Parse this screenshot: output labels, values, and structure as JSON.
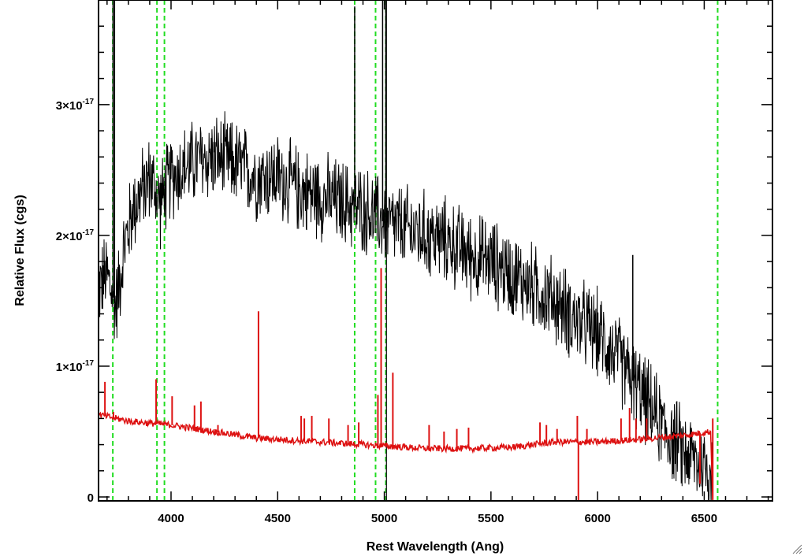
{
  "chart_data": {
    "type": "line",
    "xlabel": "Rest Wavelength (Ang)",
    "ylabel": "Relative Flux (cgs)",
    "xlim": [
      3660,
      6820
    ],
    "ylim": [
      -3e-19,
      3.8e-17
    ],
    "xticks": [
      4000,
      4500,
      5000,
      5500,
      6000,
      6500
    ],
    "xtick_labels": [
      "4000",
      "4500",
      "5000",
      "5500",
      "6000",
      "6500"
    ],
    "yticks": [
      {
        "value": 0,
        "label": "0",
        "exp": ""
      },
      {
        "value": 1e-17,
        "label": "1×10",
        "exp": "-17"
      },
      {
        "value": 2e-17,
        "label": "2×10",
        "exp": "-17"
      },
      {
        "value": 3e-17,
        "label": "3×10",
        "exp": "-17"
      }
    ],
    "grid": false,
    "series": [
      {
        "color": "#000000",
        "style": "solid",
        "noise_amplitude": 2.8e-18,
        "x": [
          3660,
          3700,
          3740,
          3780,
          3820,
          3900,
          3950,
          4000,
          4100,
          4200,
          4300,
          4400,
          4500,
          4600,
          4700,
          4800,
          4900,
          5000,
          5100,
          5200,
          5300,
          5400,
          5500,
          5600,
          5700,
          5800,
          5900,
          6000,
          6100,
          6200,
          6300,
          6400,
          6500,
          6540
        ],
        "y": [
          1.6e-17,
          1.7e-17,
          1.45e-17,
          1.9e-17,
          2.2e-17,
          2.45e-17,
          2.25e-17,
          2.45e-17,
          2.55e-17,
          2.6e-17,
          2.55e-17,
          2.45e-17,
          2.45e-17,
          2.35e-17,
          2.3e-17,
          2.25e-17,
          2.2e-17,
          2.1e-17,
          2.05e-17,
          2e-17,
          1.95e-17,
          1.85e-17,
          1.8e-17,
          1.7e-17,
          1.6e-17,
          1.5e-17,
          1.35e-17,
          1.25e-17,
          1.05e-17,
          8e-18,
          5.5e-18,
          3.5e-18,
          2.5e-18,
          2e-18
        ]
      },
      {
        "color": "#dd1111",
        "style": "solid",
        "noise_amplitude": 2.5e-19,
        "x": [
          3660,
          3800,
          4000,
          4200,
          4400,
          4600,
          4800,
          5000,
          5200,
          5400,
          5600,
          5700,
          5800,
          5900,
          6000,
          6200,
          6400,
          6530,
          6540,
          6820
        ],
        "y": [
          6.3e-18,
          5.8e-18,
          5.5e-18,
          5e-18,
          4.5e-18,
          4.3e-18,
          4.1e-18,
          3.9e-18,
          3.7e-18,
          3.7e-18,
          3.8e-18,
          4e-18,
          4.2e-18,
          4.2e-18,
          4.2e-18,
          4.4e-18,
          4.7e-18,
          5e-18,
          -3e-19,
          -3e-19
        ]
      }
    ],
    "black_spikes": [
      {
        "x": 3728,
        "y": 3.8e-17
      },
      {
        "x": 3735,
        "y": 3.8e-17
      },
      {
        "x": 4861,
        "y": 3.75e-17
      },
      {
        "x": 4992,
        "y": 3.8e-17
      },
      {
        "x": 5007,
        "y": 3.8e-17
      },
      {
        "x": 6165,
        "y": 1.85e-17
      }
    ],
    "red_spikes": [
      {
        "x": 3690,
        "y": 8.8e-18
      },
      {
        "x": 3730,
        "y": 6.5e-18
      },
      {
        "x": 3930,
        "y": 9e-18
      },
      {
        "x": 4005,
        "y": 7.7e-18
      },
      {
        "x": 4110,
        "y": 7e-18
      },
      {
        "x": 4140,
        "y": 7.3e-18
      },
      {
        "x": 4220,
        "y": 5.5e-18
      },
      {
        "x": 4410,
        "y": 1.42e-17
      },
      {
        "x": 4610,
        "y": 6.2e-18
      },
      {
        "x": 4625,
        "y": 6e-18
      },
      {
        "x": 4660,
        "y": 6.2e-18
      },
      {
        "x": 4740,
        "y": 6e-18
      },
      {
        "x": 4830,
        "y": 5.5e-18
      },
      {
        "x": 4880,
        "y": 5.7e-18
      },
      {
        "x": 4970,
        "y": 7.8e-18
      },
      {
        "x": 4985,
        "y": 1.75e-17
      },
      {
        "x": 5040,
        "y": 9.5e-18
      },
      {
        "x": 5210,
        "y": 5.5e-18
      },
      {
        "x": 5280,
        "y": 5e-18
      },
      {
        "x": 5340,
        "y": 5.2e-18
      },
      {
        "x": 5395,
        "y": 5.3e-18
      },
      {
        "x": 5730,
        "y": 5.7e-18
      },
      {
        "x": 5760,
        "y": 5.5e-18
      },
      {
        "x": 5810,
        "y": 5.2e-18
      },
      {
        "x": 5905,
        "y": 6.2e-18
      },
      {
        "x": 5950,
        "y": 5.2e-18
      },
      {
        "x": 6110,
        "y": 6e-18
      },
      {
        "x": 6150,
        "y": 6.8e-18
      },
      {
        "x": 6180,
        "y": 6e-18
      },
      {
        "x": 6230,
        "y": 6e-18
      },
      {
        "x": 6540,
        "y": 6e-18
      }
    ],
    "red_dips": [
      {
        "x": 5910,
        "y": -3e-19
      },
      {
        "x": 6480,
        "y": 1e-18
      }
    ],
    "reference_lines": {
      "color": "#22dd22",
      "style": "dashed",
      "x": [
        3727,
        3934,
        3969,
        4861,
        4959,
        5007,
        6563
      ]
    },
    "solid_vline": {
      "x": 5010,
      "color": "#000000"
    }
  }
}
